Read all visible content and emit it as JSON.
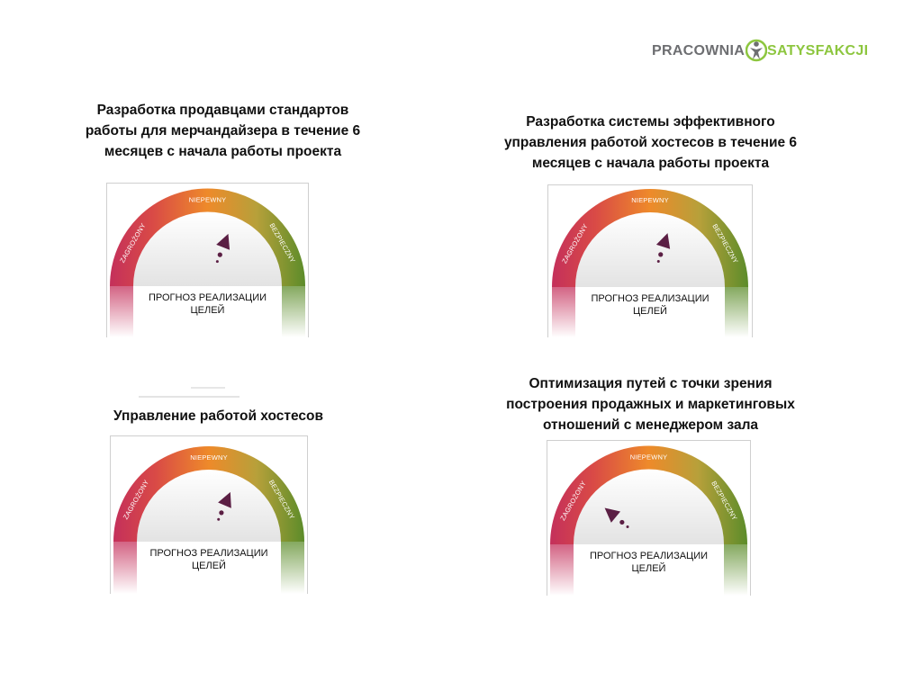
{
  "logo": {
    "part1": "PRACOWNIA",
    "part2": "SATYSFAKCJI",
    "colors": {
      "part1": "#6d6e71",
      "part2": "#8dc63f"
    }
  },
  "gauge_labels": {
    "left": "ZAGROŻONY",
    "middle": "NIEPEWNY",
    "right": "BEZPIECZNY"
  },
  "colors": {
    "red": "#c4305b",
    "orange": "#ee8a2a",
    "green": "#5c8c2a",
    "marker": "#5b1f44"
  },
  "panels": [
    {
      "title_lines": [
        "Разработка продавцами стандартов",
        "работы для мерчандайзера в течение 6",
        "месяцев с начала работы проекта"
      ],
      "caption_lines": [
        "ПРОГНОЗ РЕАЛИЗАЦИИ",
        "ЦЕЛЕЙ"
      ],
      "forecast_position": 0.62
    },
    {
      "title_lines": [
        "Разработка системы эффективного",
        "управления работой хостесов в течение 6",
        "месяцев с начала работы проекта"
      ],
      "caption_lines": [
        "ПРОГНОЗ РЕАЛИЗАЦИИ",
        "ЦЕЛЕЙ"
      ],
      "forecast_position": 0.6
    },
    {
      "title_lines": [
        "Управление работой хостесов"
      ],
      "caption_lines": [
        "ПРОГНОЗ РЕАЛИЗАЦИИ",
        "ЦЕЛЕЙ"
      ],
      "forecast_position": 0.63
    },
    {
      "title_lines": [
        "Оптимизация путей с точки зрения",
        "построения продажных и маркетинговых",
        "отношений с менеджером зала"
      ],
      "caption_lines": [
        "ПРОГНОЗ РЕАЛИЗАЦИИ",
        "ЦЕЛЕЙ"
      ],
      "forecast_position": 0.22
    }
  ]
}
